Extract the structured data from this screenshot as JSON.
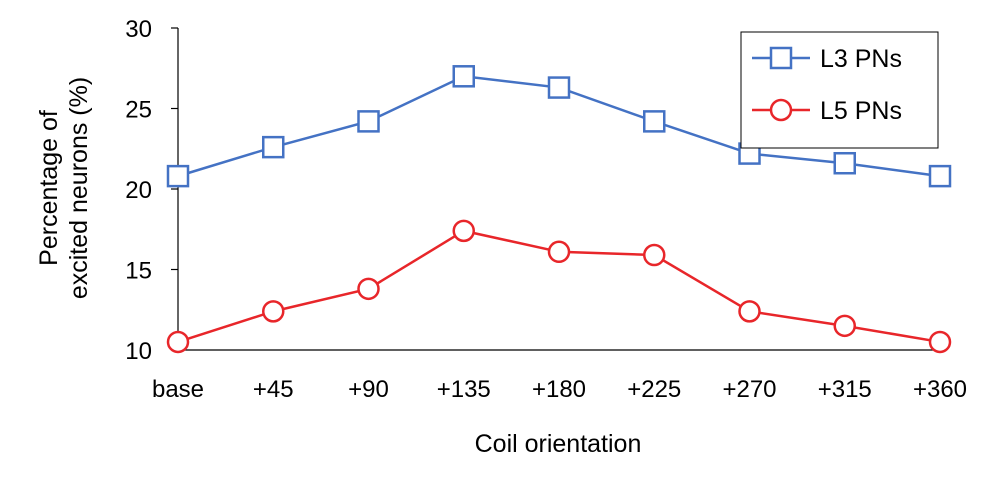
{
  "chart_data": {
    "type": "line",
    "categories": [
      "base",
      "+45",
      "+90",
      "+135",
      "+180",
      "+225",
      "+270",
      "+315",
      "+360"
    ],
    "series": [
      {
        "name": "L3 PNs",
        "color": "#4472C4",
        "marker": "square",
        "values": [
          20.8,
          22.6,
          24.2,
          27.0,
          26.3,
          24.2,
          22.2,
          21.6,
          20.8
        ]
      },
      {
        "name": "L5 PNs",
        "color": "#E8262A",
        "marker": "circle",
        "values": [
          10.5,
          12.4,
          13.8,
          17.4,
          16.1,
          15.9,
          12.4,
          11.5,
          10.5
        ]
      }
    ],
    "xlabel": "Coil orientation",
    "ylabel_lines": [
      "Percentage of",
      "excited neurons (%)"
    ],
    "ylim": [
      10,
      30
    ],
    "yticks": [
      "10",
      "15",
      "20",
      "25",
      "30"
    ],
    "grid": false,
    "legend_position": "top-right"
  }
}
